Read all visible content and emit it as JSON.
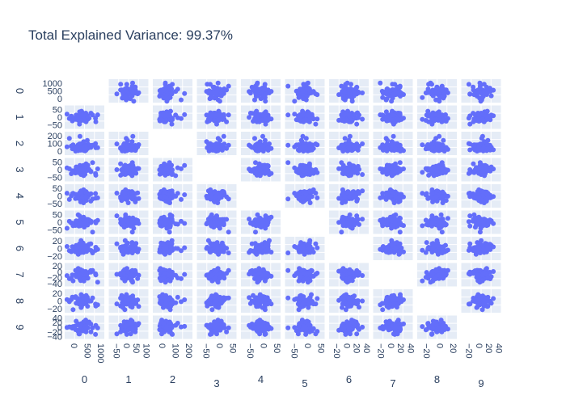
{
  "title": "Total Explained Variance: 99.37%",
  "colors": {
    "marker": "#636efa",
    "panel_bg": "#e5ecf6",
    "grid": "#ffffff",
    "text": "#2a3f5f"
  },
  "chart_data": {
    "type": "scatter",
    "title": "Total Explained Variance: 99.37%",
    "layout": "scatter-matrix-lower-and-upper-with-empty-diagonal",
    "grid": true,
    "dimensions": [
      "0",
      "1",
      "2",
      "3",
      "4",
      "5",
      "6",
      "7",
      "8",
      "9"
    ],
    "dimension_ranges": [
      [
        -200,
        1300
      ],
      [
        -80,
        80
      ],
      [
        -100,
        250
      ],
      [
        -70,
        70
      ],
      [
        -70,
        70
      ],
      [
        -60,
        60
      ],
      [
        -45,
        45
      ],
      [
        -45,
        45
      ],
      [
        -35,
        35
      ],
      [
        -45,
        45
      ]
    ],
    "y_tick_labels": {
      "0": [
        "0",
        "500",
        "1000"
      ],
      "1": [
        "−50",
        "0",
        "50"
      ],
      "2": [
        "0",
        "100",
        "200"
      ],
      "3": [
        "−50",
        "0",
        "50"
      ],
      "4": [
        "−50",
        "0",
        "50"
      ],
      "5": [
        "−50",
        "0",
        "50"
      ],
      "6": [
        "−20",
        "0",
        "20"
      ],
      "7": [
        "−40",
        "−20",
        "0",
        "20"
      ],
      "8": [
        "−20",
        "0",
        "20"
      ],
      "9": [
        "−40",
        "−20",
        "0",
        "20",
        "40"
      ]
    },
    "x_tick_labels": {
      "0": [
        "0",
        "500",
        "1000"
      ],
      "1": [
        "−50",
        "0",
        "50",
        "100"
      ],
      "2": [
        "0",
        "100",
        "200"
      ],
      "3": [
        "−50",
        "0",
        "50"
      ],
      "4": [
        "−50",
        "0",
        "50"
      ],
      "5": [
        "−50",
        "0",
        "50"
      ],
      "6": [
        "−20",
        "0",
        "20",
        "40"
      ],
      "7": [
        "−20",
        "0",
        "20",
        "40"
      ],
      "8": [
        "−20",
        "0",
        "20"
      ],
      "9": [
        "−20",
        "0",
        "20",
        "40"
      ]
    },
    "point_cloud": {
      "points_per_panel": 60,
      "note_distribution": "dense cluster centered at 0 for dims 1-9; dim 0 centered near 450 with spread to ~1000; dim 2 has outliers up to ~200"
    }
  }
}
